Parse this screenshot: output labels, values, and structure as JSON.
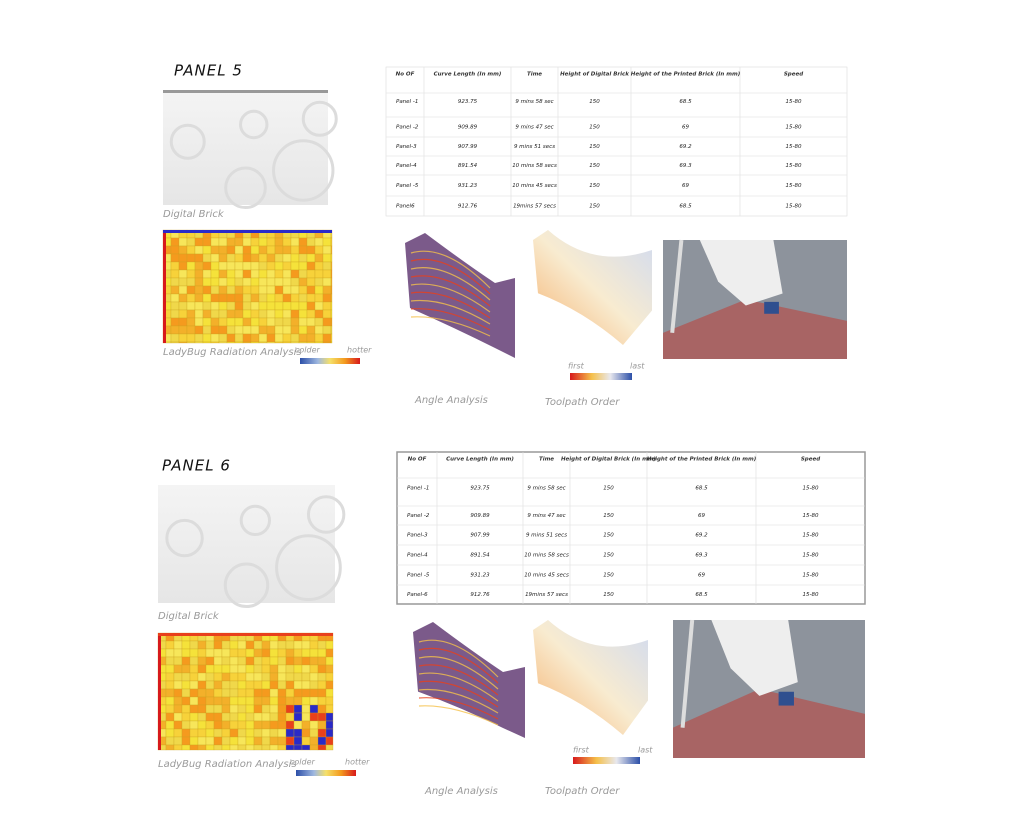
{
  "highlight_color": "#e8312b",
  "panels": [
    {
      "title": "PANEL 5",
      "brick_caption": "Digital Brick",
      "radiation_caption": "LadyBug Radiation Analysis",
      "colder": "colder",
      "hotter": "hotter",
      "first": "first",
      "last": "last",
      "angle_caption": "Angle Analysis",
      "toolpath_caption": "Toolpath Order",
      "table": {
        "headers": [
          "No OF",
          "Curve Length (In mm)",
          "Time",
          "Height of Digital Brick",
          "Height of the Printed Brick (In mm)",
          "Speed"
        ],
        "highlight_row": 4,
        "rows": [
          [
            "Panel -1",
            "923.75",
            "9 mins 58 sec",
            "150",
            "68.5",
            "15-80"
          ],
          [
            "Panel -2",
            "909.89",
            "9 mins 47 sec",
            "150",
            "69",
            "15-80"
          ],
          [
            "Panel-3",
            "907.99",
            "9 mins 51 secs",
            "150",
            "69.2",
            "15-80"
          ],
          [
            "Panel-4",
            "891.54",
            "10 mins 58 secs",
            "150",
            "69.3",
            "15-80"
          ],
          [
            "Panel -5",
            "931.23",
            "10 mins 45 secs",
            "150",
            "69",
            "15-80"
          ],
          [
            "Panel6",
            "912.76",
            "19mins 57 secs",
            "150",
            "68.5",
            "15-80"
          ]
        ]
      }
    },
    {
      "title": "PANEL 6",
      "brick_caption": "Digital Brick",
      "radiation_caption": "LadyBug Radiation Analysis",
      "colder": "colder",
      "hotter": "hotter",
      "first": "first",
      "last": "last",
      "angle_caption": "Angle Analysis",
      "toolpath_caption": "Toolpath Order",
      "table": {
        "headers": [
          "No OF",
          "Curve Length (In mm)",
          "Time",
          "Height of Digital Brick (In mm)",
          "Height of the Printed Brick (In mm)",
          "Speed"
        ],
        "highlight_row": 5,
        "rows": [
          [
            "Panel -1",
            "923.75",
            "9 mins 58 sec",
            "150",
            "68.5",
            "15-80"
          ],
          [
            "Panel -2",
            "909.89",
            "9 mins 47 sec",
            "150",
            "69",
            "15-80"
          ],
          [
            "Panel-3",
            "907.99",
            "9 mins 51 secs",
            "150",
            "69.2",
            "15-80"
          ],
          [
            "Panel-4",
            "891.54",
            "10 mins 58 secs",
            "150",
            "69.3",
            "15-80"
          ],
          [
            "Panel -5",
            "931.23",
            "10 mins 45 secs",
            "150",
            "69",
            "15-80"
          ],
          [
            "Panel-6",
            "912.76",
            "19mins 57 secs",
            "150",
            "68.5",
            "15-80"
          ]
        ]
      }
    }
  ]
}
